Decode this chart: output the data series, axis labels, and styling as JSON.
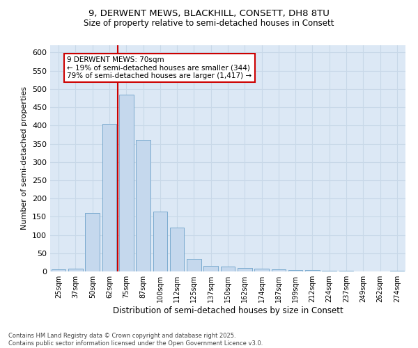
{
  "title_line1": "9, DERWENT MEWS, BLACKHILL, CONSETT, DH8 8TU",
  "title_line2": "Size of property relative to semi-detached houses in Consett",
  "xlabel": "Distribution of semi-detached houses by size in Consett",
  "ylabel": "Number of semi-detached properties",
  "bar_color": "#c5d8ed",
  "bar_edgecolor": "#7aaace",
  "grid_color": "#c8d8e8",
  "bg_color": "#dce8f5",
  "vline_color": "#cc0000",
  "vline_x": 3.5,
  "annotation_text": "9 DERWENT MEWS: 70sqm\n← 19% of semi-detached houses are smaller (344)\n79% of semi-detached houses are larger (1,417) →",
  "annotation_box_edgecolor": "#cc0000",
  "categories": [
    "25sqm",
    "37sqm",
    "50sqm",
    "62sqm",
    "75sqm",
    "87sqm",
    "100sqm",
    "112sqm",
    "125sqm",
    "137sqm",
    "150sqm",
    "162sqm",
    "174sqm",
    "187sqm",
    "199sqm",
    "212sqm",
    "224sqm",
    "237sqm",
    "249sqm",
    "262sqm",
    "274sqm"
  ],
  "values": [
    5,
    8,
    160,
    405,
    485,
    360,
    165,
    120,
    35,
    15,
    13,
    10,
    7,
    5,
    3,
    4,
    2,
    1,
    0,
    0,
    2
  ],
  "ylim": [
    0,
    620
  ],
  "yticks": [
    0,
    50,
    100,
    150,
    200,
    250,
    300,
    350,
    400,
    450,
    500,
    550,
    600
  ],
  "footnote": "Contains HM Land Registry data © Crown copyright and database right 2025.\nContains public sector information licensed under the Open Government Licence v3.0.",
  "figsize": [
    6.0,
    5.0
  ],
  "dpi": 100
}
